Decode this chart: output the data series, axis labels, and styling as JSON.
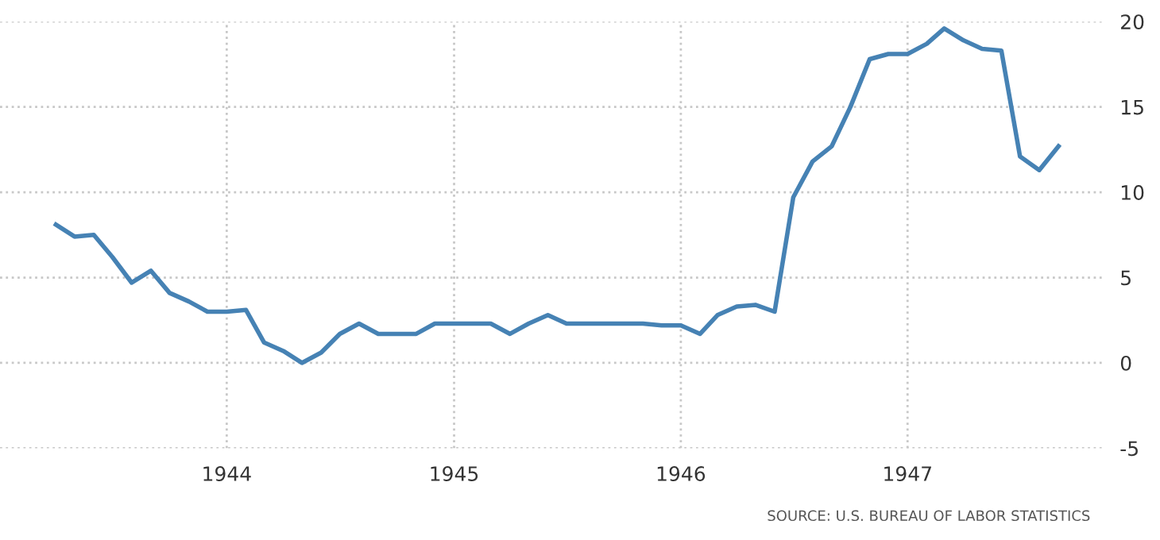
{
  "chart_data": {
    "type": "line",
    "x": [
      "1943-04",
      "1943-05",
      "1943-06",
      "1943-07",
      "1943-08",
      "1943-09",
      "1943-10",
      "1943-11",
      "1943-12",
      "1944-01",
      "1944-02",
      "1944-03",
      "1944-04",
      "1944-05",
      "1944-06",
      "1944-07",
      "1944-08",
      "1944-09",
      "1944-10",
      "1944-11",
      "1944-12",
      "1945-01",
      "1945-02",
      "1945-03",
      "1945-04",
      "1945-05",
      "1945-06",
      "1945-07",
      "1945-08",
      "1945-09",
      "1945-10",
      "1945-11",
      "1945-12",
      "1946-01",
      "1946-02",
      "1946-03",
      "1946-04",
      "1946-05",
      "1946-06",
      "1946-07",
      "1946-08",
      "1946-09",
      "1946-10",
      "1946-11",
      "1946-12",
      "1947-01",
      "1947-02",
      "1947-03",
      "1947-04",
      "1947-05",
      "1947-06",
      "1947-07",
      "1947-08",
      "1947-09"
    ],
    "series": [
      {
        "color": "#4682b4",
        "values": [
          8.1,
          7.4,
          7.5,
          6.2,
          4.7,
          5.4,
          4.1,
          3.6,
          3.0,
          3.0,
          3.1,
          1.2,
          0.7,
          0.0,
          0.6,
          1.7,
          2.3,
          1.7,
          1.7,
          1.7,
          2.3,
          2.3,
          2.3,
          2.3,
          1.7,
          2.3,
          2.8,
          2.3,
          2.3,
          2.3,
          2.3,
          2.3,
          2.2,
          2.2,
          1.7,
          2.8,
          3.3,
          3.4,
          3.0,
          9.7,
          11.8,
          12.7,
          15.0,
          17.8,
          18.1,
          18.1,
          18.7,
          19.6,
          18.9,
          18.4,
          18.3,
          12.1,
          11.3,
          12.7
        ]
      }
    ],
    "xlim": [
      "1943-01-01",
      "1947-11-10"
    ],
    "ylim": [
      -5,
      20
    ],
    "xticks": [
      {
        "value": "1944-01-01",
        "label": "1944"
      },
      {
        "value": "1945-01-01",
        "label": "1945"
      },
      {
        "value": "1946-01-01",
        "label": "1946"
      },
      {
        "value": "1947-01-01",
        "label": "1947"
      }
    ],
    "yticks": [
      -5,
      0,
      5,
      10,
      15,
      20
    ],
    "grid": true,
    "line_style": "solid",
    "marker": "none",
    "legend": false,
    "annotations": [
      "SOURCE: U.S. BUREAU OF LABOR STATISTICS"
    ]
  }
}
